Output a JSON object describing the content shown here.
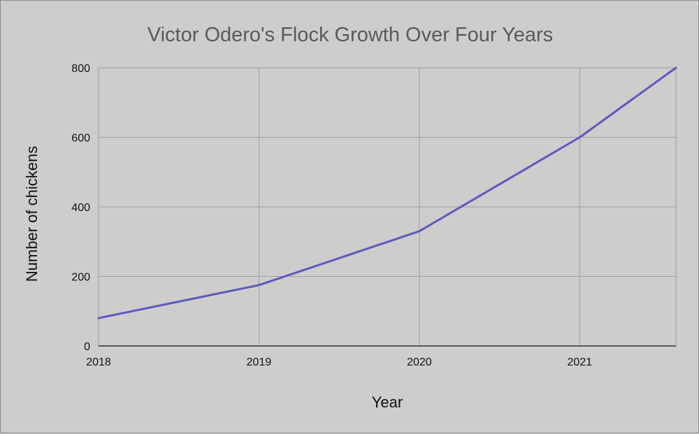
{
  "chart_data": {
    "type": "line",
    "title": "Victor Odero's Flock Growth Over Four Years",
    "xlabel": "Year",
    "ylabel": "Number of chickens",
    "x_ticks": [
      "2018",
      "2019",
      "2020",
      "2021"
    ],
    "y_ticks": [
      "0",
      "200",
      "400",
      "600",
      "800"
    ],
    "xlim": [
      2018,
      2021.6
    ],
    "ylim": [
      0,
      800
    ],
    "grid": true,
    "series": [
      {
        "x": [
          2018,
          2019,
          2020,
          2021,
          2021.6
        ],
        "values": [
          80,
          175,
          330,
          600,
          800
        ]
      }
    ],
    "colors": {
      "background": "#cfcccc",
      "line": "#5a5ac0",
      "grid": "#9e9e9e",
      "axis": "#333333"
    }
  }
}
